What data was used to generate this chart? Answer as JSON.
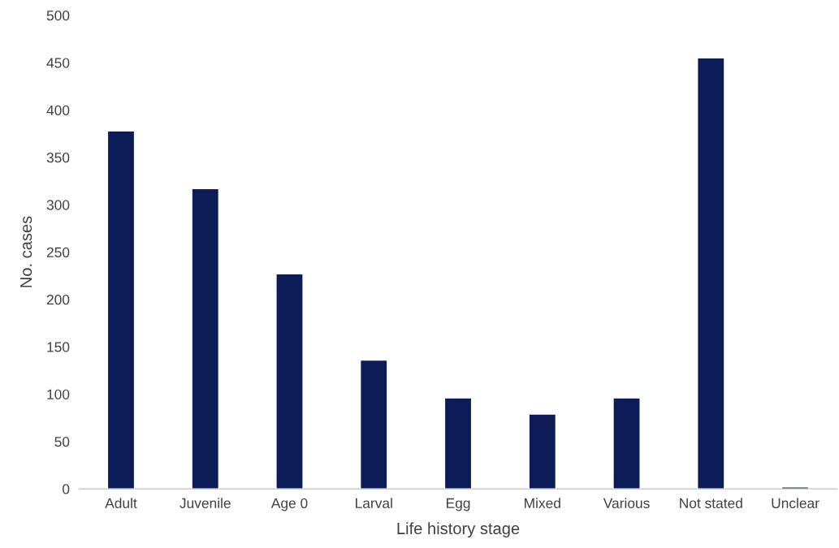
{
  "chart_data": {
    "type": "bar",
    "xlabel": "Life history stage",
    "ylabel": "No. cases",
    "categories": [
      "Adult",
      "Juvenile",
      "Age 0",
      "Larval",
      "Egg",
      "Mixed",
      "Various",
      "Not stated",
      "Unclear"
    ],
    "values": [
      378,
      317,
      227,
      136,
      96,
      79,
      96,
      455,
      2
    ],
    "color": "#0b1c56",
    "ylim": [
      0,
      500
    ],
    "yticks": [
      0,
      50,
      100,
      150,
      200,
      250,
      300,
      350,
      400,
      450,
      500
    ],
    "grid": false,
    "legend": false
  }
}
